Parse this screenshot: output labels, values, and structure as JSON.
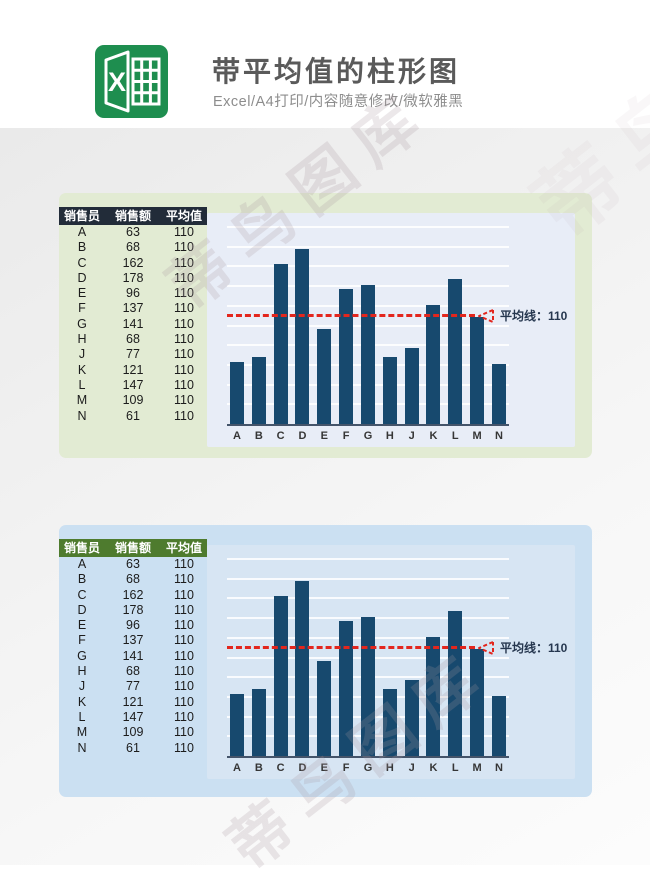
{
  "header": {
    "title": "带平均值的柱形图",
    "subtitle": "Excel/A4打印/内容随意修改/微软雅黑",
    "logo_letter": "X"
  },
  "watermark": {
    "text": "蒂鸟图库"
  },
  "table": {
    "headers": [
      "销售员",
      "销售额",
      "平均值"
    ],
    "rows": [
      [
        "A",
        "63",
        "110"
      ],
      [
        "B",
        "68",
        "110"
      ],
      [
        "C",
        "162",
        "110"
      ],
      [
        "D",
        "178",
        "110"
      ],
      [
        "E",
        "96",
        "110"
      ],
      [
        "F",
        "137",
        "110"
      ],
      [
        "G",
        "141",
        "110"
      ],
      [
        "H",
        "68",
        "110"
      ],
      [
        "J",
        "77",
        "110"
      ],
      [
        "K",
        "121",
        "110"
      ],
      [
        "L",
        "147",
        "110"
      ],
      [
        "M",
        "109",
        "110"
      ],
      [
        "N",
        "61",
        "110"
      ]
    ]
  },
  "chart_data": {
    "type": "bar",
    "categories": [
      "A",
      "B",
      "C",
      "D",
      "E",
      "F",
      "G",
      "H",
      "J",
      "K",
      "L",
      "M",
      "N"
    ],
    "values": [
      63,
      68,
      162,
      178,
      96,
      137,
      141,
      68,
      77,
      121,
      147,
      109,
      61
    ],
    "title": "",
    "xlabel": "",
    "ylabel": "",
    "ylim": [
      0,
      200
    ],
    "grid_step": 20,
    "grid": true,
    "legend": false,
    "average": 110,
    "average_label": "平均线：110"
  },
  "panels": [
    {
      "name": "green-theme",
      "bg": "#e2ebd3",
      "table_header_bg": "#222c39",
      "table_header_color": "#ffffff",
      "chart_bg": "#e8edf7"
    },
    {
      "name": "blue-theme",
      "bg": "#cbe0f2",
      "table_header_bg": "#4e7b2e",
      "table_header_color": "#ffffff",
      "chart_bg": "#d7e5f3"
    }
  ],
  "colors": {
    "bar": "#17496e",
    "average_line": "#e3261d",
    "axis": "#44546a",
    "annotation_text": "#26374f",
    "logo_green": "#1e8e4f",
    "title": "#5a5a5a",
    "subtitle": "#8d8d8d"
  }
}
